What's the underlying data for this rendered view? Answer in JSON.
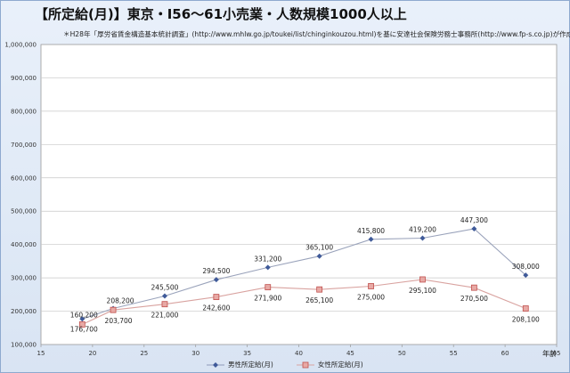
{
  "chart_data": {
    "type": "line",
    "title": "【所定給(月)】東京・I56～61小売業・人数規模1000人以上",
    "subtitle": "＊H28年「厚労省賃金構造基本統計調査」(http://www.mhlw.go.jp/toukei/list/chinginkouzou.html)を基に安達社会保険労務士事務所(http://www.fp-s.co.jp)が作成",
    "xlabel": "年齢",
    "ylabel": "",
    "xlim": [
      15,
      65
    ],
    "ylim": [
      100000,
      1000000
    ],
    "x_ticks": [
      "15",
      "20",
      "25",
      "30",
      "35",
      "40",
      "45",
      "50",
      "55",
      "60",
      "65"
    ],
    "y_ticks": [
      "100,000",
      "200,000",
      "300,000",
      "400,000",
      "500,000",
      "600,000",
      "700,000",
      "800,000",
      "900,000",
      "1,000,000"
    ],
    "grid": true,
    "legend_position": "bottom",
    "series": [
      {
        "name": "男性所定給(月)",
        "color": "#5a6fa8",
        "marker": "diamond",
        "x": [
          19,
          22,
          27,
          32,
          37,
          42,
          47,
          52,
          57,
          62
        ],
        "values": [
          176700,
          208200,
          245500,
          294500,
          331200,
          365100,
          415800,
          419200,
          447300,
          308000
        ],
        "labels": [
          "176,700",
          "208,200",
          "245,500",
          "294,500",
          "331,200",
          "365,100",
          "415,800",
          "419,200",
          "447,300",
          "308,000"
        ]
      },
      {
        "name": "女性所定給(月)",
        "color": "#c0504d",
        "marker": "square",
        "x": [
          19,
          22,
          27,
          32,
          37,
          42,
          47,
          52,
          57,
          62
        ],
        "values": [
          160200,
          203700,
          221000,
          242600,
          271900,
          265100,
          275000,
          295100,
          270500,
          208100
        ],
        "labels": [
          "160,200",
          "203,700",
          "221,000",
          "242,600",
          "271,900",
          "265,100",
          "275,000",
          "295,100",
          "270,500",
          "208,100"
        ]
      }
    ]
  }
}
